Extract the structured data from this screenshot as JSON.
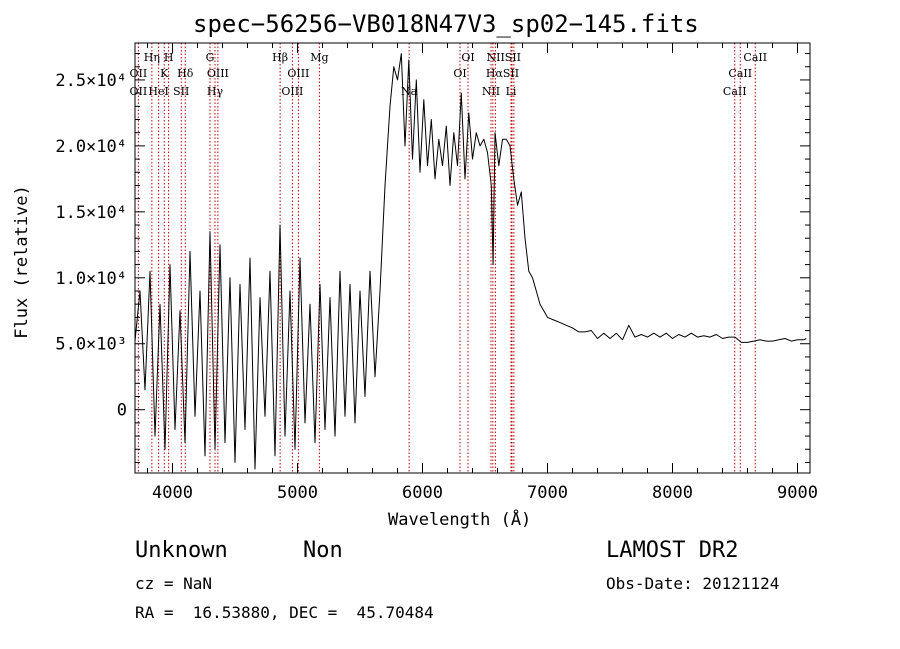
{
  "chart_data": {
    "type": "line",
    "title": "spec−56256−VB018N47V3_sp02−145.fits",
    "xlabel": "Wavelength (Å)",
    "ylabel": "Flux (relative)",
    "xlim": [
      3700,
      9100
    ],
    "ylim": [
      -4800,
      27800
    ],
    "x_ticks": [
      {
        "value": 4000,
        "label": "4000"
      },
      {
        "value": 5000,
        "label": "5000"
      },
      {
        "value": 6000,
        "label": "6000"
      },
      {
        "value": 7000,
        "label": "7000"
      },
      {
        "value": 8000,
        "label": "8000"
      },
      {
        "value": 9000,
        "label": "9000"
      }
    ],
    "y_ticks": [
      {
        "value": 0,
        "label": "0"
      },
      {
        "value": 5000,
        "label": "5.0×10³"
      },
      {
        "value": 10000,
        "label": "1.0×10⁴"
      },
      {
        "value": 15000,
        "label": "1.5×10⁴"
      },
      {
        "value": 20000,
        "label": "2.0×10⁴"
      },
      {
        "value": 25000,
        "label": "2.5×10⁴"
      }
    ],
    "series": [
      {
        "color": "#000000",
        "x": [
          3700,
          3740,
          3780,
          3820,
          3860,
          3900,
          3940,
          3980,
          4020,
          4060,
          4100,
          4140,
          4180,
          4220,
          4260,
          4300,
          4340,
          4380,
          4420,
          4460,
          4500,
          4540,
          4580,
          4620,
          4660,
          4700,
          4740,
          4780,
          4820,
          4860,
          4900,
          4940,
          4980,
          5020,
          5060,
          5100,
          5140,
          5180,
          5220,
          5260,
          5300,
          5340,
          5380,
          5420,
          5460,
          5500,
          5540,
          5580,
          5620,
          5660,
          5700,
          5740,
          5770,
          5800,
          5830,
          5860,
          5890,
          5920,
          5950,
          5980,
          6010,
          6040,
          6070,
          6100,
          6130,
          6160,
          6190,
          6220,
          6250,
          6280,
          6310,
          6340,
          6370,
          6400,
          6430,
          6460,
          6490,
          6520,
          6550,
          6565,
          6580,
          6610,
          6640,
          6670,
          6700,
          6730,
          6760,
          6790,
          6820,
          6850,
          6880,
          6910,
          6940,
          6970,
          7000,
          7050,
          7100,
          7150,
          7200,
          7250,
          7300,
          7350,
          7400,
          7450,
          7500,
          7550,
          7600,
          7650,
          7700,
          7750,
          7800,
          7850,
          7900,
          7950,
          8000,
          8050,
          8100,
          8150,
          8200,
          8250,
          8300,
          8350,
          8400,
          8450,
          8500,
          8550,
          8600,
          8650,
          8700,
          8750,
          8800,
          8850,
          8900,
          8950,
          9000,
          9050,
          9070
        ],
        "y": [
          5200,
          9000,
          1500,
          10500,
          -2000,
          8000,
          -3000,
          11000,
          -1500,
          7500,
          -2500,
          12000,
          -500,
          9000,
          -3500,
          13500,
          -3000,
          12500,
          -2500,
          10000,
          -4000,
          9500,
          -1500,
          11500,
          -4500,
          8500,
          -500,
          10500,
          -3500,
          14000,
          -2000,
          9000,
          -3000,
          11500,
          -1000,
          8000,
          -2500,
          9500,
          -1500,
          8500,
          -2000,
          10500,
          -500,
          9500,
          -1000,
          9000,
          1000,
          10500,
          2500,
          9000,
          17000,
          23000,
          26000,
          25000,
          27000,
          20000,
          26500,
          19000,
          25000,
          18000,
          23500,
          18500,
          22000,
          17500,
          20500,
          18500,
          21500,
          17000,
          21000,
          18500,
          24000,
          17500,
          22500,
          19000,
          21000,
          20000,
          20500,
          19500,
          17000,
          11000,
          21000,
          18500,
          20500,
          20500,
          20000,
          17500,
          15500,
          16500,
          13000,
          10500,
          10000,
          9000,
          8000,
          7500,
          7000,
          6800,
          6600,
          6400,
          6200,
          5900,
          5900,
          6000,
          5400,
          5800,
          5400,
          5800,
          5300,
          6400,
          5500,
          5700,
          5500,
          5800,
          5500,
          5800,
          5400,
          5700,
          5500,
          5800,
          5500,
          5600,
          5500,
          5700,
          5400,
          5500,
          5500,
          5100,
          5100,
          5200,
          5300,
          5200,
          5200,
          5300,
          5400,
          5200,
          5300,
          5300,
          5400
        ]
      }
    ],
    "emission_lines": [
      {
        "wavelength": 3727,
        "color": "#c00000"
      },
      {
        "wavelength": 3835,
        "color": "#c00000"
      },
      {
        "wavelength": 3889,
        "color": "#c00000"
      },
      {
        "wavelength": 3934,
        "color": "#c00000"
      },
      {
        "wavelength": 3969,
        "color": "#c00000"
      },
      {
        "wavelength": 4070,
        "color": "#c00000"
      },
      {
        "wavelength": 4102,
        "color": "#c00000"
      },
      {
        "wavelength": 4300,
        "color": "#c00000"
      },
      {
        "wavelength": 4340,
        "color": "#c00000"
      },
      {
        "wavelength": 4363,
        "color": "#c00000"
      },
      {
        "wavelength": 4861,
        "color": "#c00000"
      },
      {
        "wavelength": 4959,
        "color": "#c00000"
      },
      {
        "wavelength": 5007,
        "color": "#c00000"
      },
      {
        "wavelength": 5175,
        "color": "#c00000"
      },
      {
        "wavelength": 5893,
        "color": "#c00000"
      },
      {
        "wavelength": 6300,
        "color": "#c00000"
      },
      {
        "wavelength": 6364,
        "color": "#c00000"
      },
      {
        "wavelength": 6548,
        "color": "#c00000"
      },
      {
        "wavelength": 6563,
        "color": "#c00000"
      },
      {
        "wavelength": 6583,
        "color": "#c00000"
      },
      {
        "wavelength": 6708,
        "color": "#c00000"
      },
      {
        "wavelength": 6716,
        "color": "#c00000"
      },
      {
        "wavelength": 6731,
        "color": "#c00000"
      },
      {
        "wavelength": 8498,
        "color": "#c00000"
      },
      {
        "wavelength": 8542,
        "color": "#c00000"
      },
      {
        "wavelength": 8662,
        "color": "#c00000"
      }
    ],
    "line_labels": [
      {
        "text": "Hη",
        "wavelength": 3835,
        "row": 1
      },
      {
        "text": "H",
        "wavelength": 3969,
        "row": 1
      },
      {
        "text": "G",
        "wavelength": 4300,
        "row": 1
      },
      {
        "text": "Hβ",
        "wavelength": 4861,
        "row": 1
      },
      {
        "text": "Mg",
        "wavelength": 5175,
        "row": 1
      },
      {
        "text": "OI",
        "wavelength": 6364,
        "row": 1
      },
      {
        "text": "NIISII",
        "wavelength": 6650,
        "row": 1
      },
      {
        "text": "CaII",
        "wavelength": 8662,
        "row": 1
      },
      {
        "text": "OII",
        "wavelength": 3727,
        "row": 2
      },
      {
        "text": "K",
        "wavelength": 3934,
        "row": 2
      },
      {
        "text": "Hδ",
        "wavelength": 4102,
        "row": 2
      },
      {
        "text": "OIII",
        "wavelength": 4363,
        "row": 2
      },
      {
        "text": "OIII",
        "wavelength": 5007,
        "row": 2
      },
      {
        "text": "OI",
        "wavelength": 6300,
        "row": 2
      },
      {
        "text": "HαSII",
        "wavelength": 6640,
        "row": 2
      },
      {
        "text": "CaII",
        "wavelength": 8542,
        "row": 2
      },
      {
        "text": "OII",
        "wavelength": 3727,
        "row": 3
      },
      {
        "text": "HeI",
        "wavelength": 3889,
        "row": 3
      },
      {
        "text": "SII",
        "wavelength": 4070,
        "row": 3
      },
      {
        "text": "Hγ",
        "wavelength": 4340,
        "row": 3
      },
      {
        "text": "OIII",
        "wavelength": 4959,
        "row": 3
      },
      {
        "text": "Na",
        "wavelength": 5893,
        "row": 3
      },
      {
        "text": "NII",
        "wavelength": 6548,
        "row": 3
      },
      {
        "text": "Li",
        "wavelength": 6708,
        "row": 3
      },
      {
        "text": "CaII",
        "wavelength": 8498,
        "row": 3
      }
    ]
  },
  "info": {
    "class": "Unknown",
    "subclass": "Non",
    "cz": "cz = NaN",
    "coords": "RA =  16.53880, DEC =  45.70484",
    "survey": "LAMOST DR2",
    "obs_date": "Obs-Date: 20121124"
  }
}
